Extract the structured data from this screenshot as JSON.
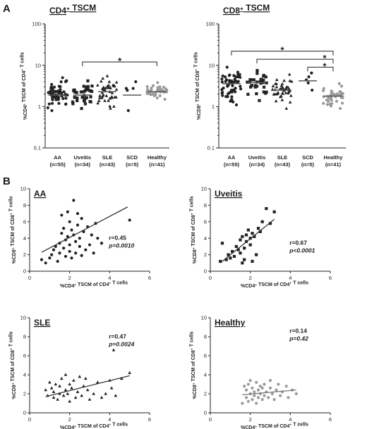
{
  "figure": {
    "panel_a": "A",
    "panel_b": "B"
  },
  "chart_data": [
    {
      "type": "scatter",
      "title": "CD4+ TSCM",
      "ylabel": "%CD4+ TSCM of CD4+ T cells",
      "yscale": "log",
      "ylim": [
        0.1,
        100
      ],
      "ytick_labels": [
        "0.1",
        "1",
        "10",
        "100"
      ],
      "categories": [
        "AA",
        "Uveitis",
        "SLE",
        "SCD",
        "Healthy"
      ],
      "category_n": [
        "(n=55)",
        "(n=34)",
        "(n=43)",
        "(n=5)",
        "(n=41)"
      ],
      "medians": [
        1.9,
        1.9,
        2.3,
        1.9,
        2.3
      ],
      "spread": [
        {
          "min": 0.8,
          "max": 5.0,
          "count": 55,
          "marker": "circle",
          "color": "#222222"
        },
        {
          "min": 0.9,
          "max": 4.2,
          "count": 34,
          "marker": "square",
          "color": "#222222"
        },
        {
          "min": 0.9,
          "max": 5.5,
          "count": 43,
          "marker": "triangle",
          "color": "#222222"
        },
        {
          "min": 0.8,
          "max": 4.0,
          "count": 5,
          "marker": "circle",
          "color": "#222222"
        },
        {
          "min": 1.5,
          "max": 3.8,
          "count": 41,
          "marker": "circle",
          "color": "#9a9a9a"
        }
      ],
      "significance": [
        {
          "from": "Uveitis",
          "to": "Healthy",
          "y": 12,
          "label": "*"
        }
      ]
    },
    {
      "type": "scatter",
      "title": "CD8+ TSCM",
      "ylabel": "%CD8+ TSCM of CD8+ T cells",
      "yscale": "log",
      "ylim": [
        0.1,
        100
      ],
      "ytick_labels": [
        "0.1",
        "1",
        "10",
        "100"
      ],
      "categories": [
        "AA",
        "Uveitis",
        "SLE",
        "SCD",
        "Healthy"
      ],
      "category_n": [
        "(n=55)",
        "(n=34)",
        "(n=43)",
        "(n=5)",
        "(n=41)"
      ],
      "medians": [
        3.6,
        3.8,
        2.5,
        4.2,
        1.8
      ],
      "spread": [
        {
          "min": 1.1,
          "max": 9.0,
          "count": 55,
          "marker": "circle",
          "color": "#222222"
        },
        {
          "min": 1.4,
          "max": 7.5,
          "count": 34,
          "marker": "square",
          "color": "#222222"
        },
        {
          "min": 0.9,
          "max": 6.0,
          "count": 43,
          "marker": "triangle",
          "color": "#222222"
        },
        {
          "min": 2.5,
          "max": 6.5,
          "count": 5,
          "marker": "circle",
          "color": "#222222"
        },
        {
          "min": 0.9,
          "max": 3.6,
          "count": 41,
          "marker": "circle",
          "color": "#9a9a9a"
        }
      ],
      "significance": [
        {
          "from": "AA",
          "to": "Healthy",
          "y": 22,
          "label": "*"
        },
        {
          "from": "Uveitis",
          "to": "Healthy",
          "y": 14,
          "label": "*"
        },
        {
          "from": "SCD",
          "to": "Healthy",
          "y": 9,
          "label": "*"
        }
      ]
    },
    {
      "type": "scatter",
      "title": "AA",
      "xlabel": "%CD4+ TSCM of CD4+ T cells",
      "ylabel": "%CD8+ TSCM of CD8+ T cells",
      "xlim": [
        0,
        6
      ],
      "ylim": [
        0,
        10
      ],
      "xtick_labels": [
        "0",
        "2",
        "4",
        "6"
      ],
      "ytick_labels": [
        "0",
        "2",
        "4",
        "6",
        "8",
        "10"
      ],
      "marker": "circle",
      "color": "#222222",
      "points": [
        [
          0.6,
          1.4
        ],
        [
          0.8,
          1.0
        ],
        [
          1.0,
          1.6
        ],
        [
          1.1,
          2.0
        ],
        [
          1.2,
          2.6
        ],
        [
          1.3,
          3.0
        ],
        [
          1.4,
          1.2
        ],
        [
          1.5,
          2.2
        ],
        [
          1.5,
          3.4
        ],
        [
          1.6,
          4.6
        ],
        [
          1.6,
          6.8
        ],
        [
          1.7,
          2.8
        ],
        [
          1.7,
          5.2
        ],
        [
          1.8,
          3.8
        ],
        [
          1.8,
          1.8
        ],
        [
          1.9,
          4.2
        ],
        [
          1.9,
          7.2
        ],
        [
          2.0,
          2.4
        ],
        [
          2.0,
          3.2
        ],
        [
          2.0,
          6.0
        ],
        [
          2.1,
          5.0
        ],
        [
          2.1,
          1.6
        ],
        [
          2.2,
          8.6
        ],
        [
          2.2,
          4.4
        ],
        [
          2.3,
          3.6
        ],
        [
          2.3,
          2.2
        ],
        [
          2.4,
          5.6
        ],
        [
          2.4,
          7.0
        ],
        [
          2.5,
          4.0
        ],
        [
          2.5,
          3.0
        ],
        [
          2.6,
          1.9
        ],
        [
          2.6,
          6.4
        ],
        [
          2.7,
          4.8
        ],
        [
          2.8,
          2.6
        ],
        [
          2.9,
          5.4
        ],
        [
          3.0,
          3.2
        ],
        [
          3.1,
          4.4
        ],
        [
          3.2,
          2.2
        ],
        [
          3.3,
          5.8
        ],
        [
          3.4,
          4.0
        ],
        [
          3.6,
          3.4
        ],
        [
          5.0,
          6.2
        ]
      ],
      "fit": {
        "x": [
          0.6,
          4.9
        ],
        "y": [
          2.3,
          7.8
        ]
      },
      "stats": {
        "r": "r=0.45",
        "p": "p=0.0010"
      }
    },
    {
      "type": "scatter",
      "title": "Uveitis",
      "xlabel": "%CD4+ TSCM of CD4+ T cells",
      "ylabel": "%CD8+ TSCM of CD8+ T cells",
      "xlim": [
        0,
        6
      ],
      "ylim": [
        0,
        10
      ],
      "xtick_labels": [
        "0",
        "2",
        "4",
        "6"
      ],
      "ytick_labels": [
        "0",
        "2",
        "4",
        "6",
        "8",
        "10"
      ],
      "marker": "square",
      "color": "#222222",
      "points": [
        [
          0.5,
          1.2
        ],
        [
          0.6,
          3.4
        ],
        [
          0.8,
          1.4
        ],
        [
          0.9,
          2.0
        ],
        [
          1.0,
          1.6
        ],
        [
          1.1,
          2.4
        ],
        [
          1.2,
          1.8
        ],
        [
          1.3,
          3.0
        ],
        [
          1.4,
          2.6
        ],
        [
          1.5,
          2.2
        ],
        [
          1.5,
          3.8
        ],
        [
          1.6,
          1.0
        ],
        [
          1.6,
          4.2
        ],
        [
          1.7,
          2.8
        ],
        [
          1.7,
          1.4
        ],
        [
          1.8,
          3.6
        ],
        [
          1.8,
          4.4
        ],
        [
          1.9,
          5.0
        ],
        [
          2.0,
          4.0
        ],
        [
          2.0,
          3.2
        ],
        [
          2.1,
          4.6
        ],
        [
          2.1,
          1.2
        ],
        [
          2.2,
          4.2
        ],
        [
          2.3,
          2.0
        ],
        [
          2.4,
          5.2
        ],
        [
          2.5,
          4.8
        ],
        [
          2.6,
          6.0
        ],
        [
          2.8,
          7.6
        ],
        [
          3.0,
          5.8
        ],
        [
          3.2,
          7.2
        ]
      ],
      "fit": {
        "x": [
          0.5,
          3.2
        ],
        "y": [
          1.0,
          6.3
        ]
      },
      "stats": {
        "r": "r=0.67",
        "p": "p<0.0001"
      }
    },
    {
      "type": "scatter",
      "title": "SLE",
      "xlabel": "%CD4+ TSCM of CD4+ T cells",
      "ylabel": "%CD8+ TSCM of CD8+ T cells",
      "xlim": [
        0,
        6
      ],
      "ylim": [
        0,
        10
      ],
      "xtick_labels": [
        "0",
        "2",
        "4",
        "6"
      ],
      "ytick_labels": [
        "0",
        "2",
        "4",
        "6",
        "8",
        "10"
      ],
      "marker": "triangle",
      "color": "#222222",
      "points": [
        [
          0.8,
          2.4
        ],
        [
          0.9,
          1.8
        ],
        [
          1.0,
          3.2
        ],
        [
          1.1,
          2.6
        ],
        [
          1.2,
          1.6
        ],
        [
          1.2,
          2.2
        ],
        [
          1.3,
          3.0
        ],
        [
          1.4,
          1.4
        ],
        [
          1.5,
          2.0
        ],
        [
          1.5,
          2.8
        ],
        [
          1.6,
          3.6
        ],
        [
          1.7,
          1.8
        ],
        [
          1.8,
          2.4
        ],
        [
          1.8,
          4.0
        ],
        [
          1.9,
          2.0
        ],
        [
          2.0,
          3.0
        ],
        [
          2.0,
          1.2
        ],
        [
          2.1,
          2.6
        ],
        [
          2.2,
          3.4
        ],
        [
          2.3,
          1.6
        ],
        [
          2.4,
          2.2
        ],
        [
          2.5,
          3.8
        ],
        [
          2.6,
          1.8
        ],
        [
          2.7,
          2.8
        ],
        [
          2.8,
          3.6
        ],
        [
          2.9,
          2.4
        ],
        [
          3.0,
          1.4
        ],
        [
          3.2,
          2.0
        ],
        [
          3.4,
          3.2
        ],
        [
          3.6,
          1.6
        ],
        [
          3.8,
          2.0
        ],
        [
          4.0,
          3.4
        ],
        [
          4.1,
          2.6
        ],
        [
          4.2,
          6.6
        ],
        [
          4.3,
          1.8
        ],
        [
          4.6,
          3.6
        ],
        [
          5.0,
          4.2
        ]
      ],
      "fit": {
        "x": [
          0.8,
          5.0
        ],
        "y": [
          1.7,
          3.9
        ]
      },
      "stats": {
        "r": "r=0.47",
        "p": "p=0.0024"
      }
    },
    {
      "type": "scatter",
      "title": "Healthy",
      "xlabel": "%CD4+ TSCM of CD4+ T cells",
      "ylabel": "%CD8+ TSCM of CD8+ T cells",
      "xlim": [
        0,
        6
      ],
      "ylim": [
        0,
        10
      ],
      "xtick_labels": [
        "0",
        "2",
        "4",
        "6"
      ],
      "ytick_labels": [
        "0",
        "2",
        "4",
        "6",
        "8",
        "10"
      ],
      "marker": "circle",
      "color": "#9a9a9a",
      "points": [
        [
          1.6,
          1.0
        ],
        [
          1.7,
          2.8
        ],
        [
          1.8,
          1.6
        ],
        [
          1.8,
          2.4
        ],
        [
          1.9,
          1.2
        ],
        [
          1.9,
          3.0
        ],
        [
          2.0,
          2.0
        ],
        [
          2.0,
          3.4
        ],
        [
          2.1,
          1.4
        ],
        [
          2.1,
          2.6
        ],
        [
          2.2,
          2.2
        ],
        [
          2.2,
          1.8
        ],
        [
          2.3,
          3.2
        ],
        [
          2.3,
          1.0
        ],
        [
          2.4,
          2.4
        ],
        [
          2.4,
          1.6
        ],
        [
          2.5,
          2.0
        ],
        [
          2.5,
          2.8
        ],
        [
          2.6,
          1.4
        ],
        [
          2.6,
          2.6
        ],
        [
          2.7,
          3.0
        ],
        [
          2.7,
          1.8
        ],
        [
          2.8,
          2.2
        ],
        [
          2.9,
          1.6
        ],
        [
          3.0,
          2.6
        ],
        [
          3.0,
          3.4
        ],
        [
          3.1,
          2.0
        ],
        [
          3.2,
          1.4
        ],
        [
          3.3,
          2.4
        ],
        [
          3.4,
          3.0
        ],
        [
          3.5,
          1.8
        ],
        [
          3.6,
          2.2
        ],
        [
          3.8,
          2.8
        ],
        [
          3.9,
          1.6
        ],
        [
          4.1,
          2.4
        ],
        [
          4.3,
          2.0
        ]
      ],
      "fit": {
        "x": [
          1.6,
          4.3
        ],
        "y": [
          1.9,
          2.4
        ]
      },
      "stats": {
        "r": "r=0.14",
        "p": "p=0.42"
      }
    }
  ]
}
